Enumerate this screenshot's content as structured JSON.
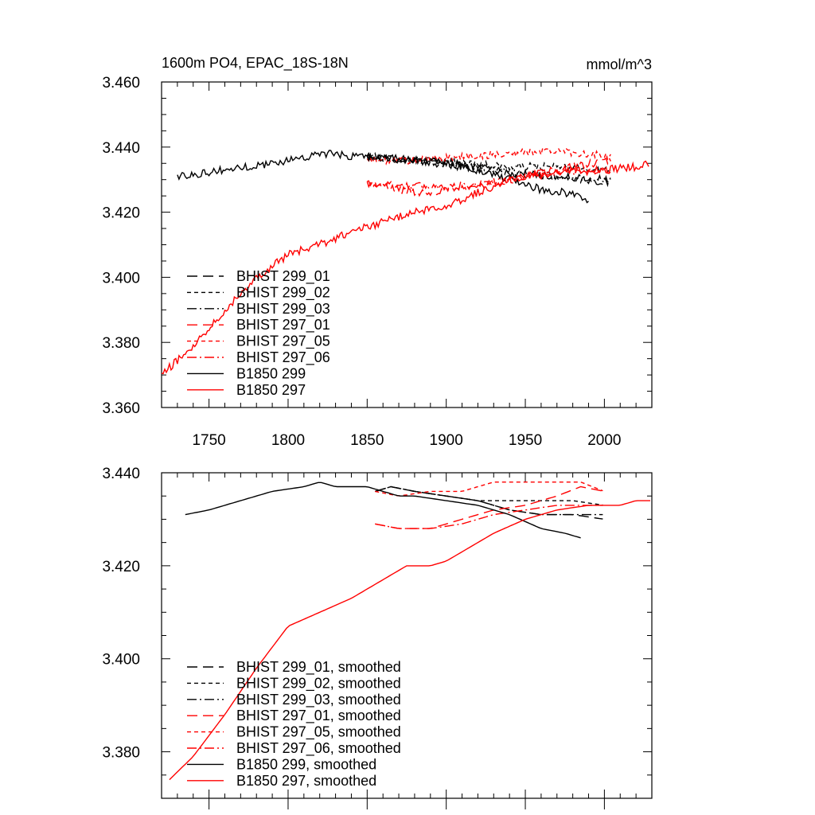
{
  "title_left": "1600m PO4, EPAC_18S-18N",
  "title_right": "mmol/m^3",
  "colors": {
    "black": "#000000",
    "red": "#ff0000"
  },
  "chart_data": [
    {
      "type": "line",
      "panel": "top",
      "title": "1600m PO4, EPAC_18S-18N",
      "units": "mmol/m^3",
      "xlim": [
        1720,
        2030
      ],
      "ylim": [
        3.36,
        3.46
      ],
      "xticks": [
        1750,
        1800,
        1850,
        1900,
        1950,
        2000
      ],
      "xtick_labels": [
        "1750",
        "1800",
        "1850",
        "1900",
        "1950",
        "2000"
      ],
      "yticks": [
        3.36,
        3.38,
        3.4,
        3.42,
        3.44,
        3.46
      ],
      "ytick_labels": [
        "3.360",
        "3.380",
        "3.400",
        "3.420",
        "3.440",
        "3.460"
      ],
      "noise": 0.0012,
      "legend_position": "lower-left",
      "series": [
        {
          "name": "BHIST 299_01",
          "color": "#000000",
          "dash": "long-dash",
          "x": [
            1850,
            1880,
            1910,
            1940,
            1970,
            2004
          ],
          "y": [
            3.437,
            3.436,
            3.434,
            3.432,
            3.431,
            3.429
          ]
        },
        {
          "name": "BHIST 299_02",
          "color": "#000000",
          "dash": "short-dash",
          "x": [
            1850,
            1880,
            1910,
            1940,
            1970,
            2004
          ],
          "y": [
            3.437,
            3.436,
            3.435,
            3.434,
            3.434,
            3.433
          ]
        },
        {
          "name": "BHIST 299_03",
          "color": "#000000",
          "dash": "dash-dot",
          "x": [
            1850,
            1880,
            1910,
            1940,
            1970,
            2004
          ],
          "y": [
            3.437,
            3.436,
            3.435,
            3.432,
            3.431,
            3.43
          ]
        },
        {
          "name": "BHIST 297_01",
          "color": "#ff0000",
          "dash": "long-dash",
          "x": [
            1850,
            1880,
            1910,
            1940,
            1970,
            2004
          ],
          "y": [
            3.429,
            3.426,
            3.427,
            3.43,
            3.433,
            3.436
          ]
        },
        {
          "name": "BHIST 297_05",
          "color": "#ff0000",
          "dash": "short-dash",
          "x": [
            1850,
            1880,
            1910,
            1940,
            1970,
            2004
          ],
          "y": [
            3.436,
            3.436,
            3.437,
            3.438,
            3.439,
            3.437
          ]
        },
        {
          "name": "BHIST 297_06",
          "color": "#ff0000",
          "dash": "dash-dot",
          "x": [
            1850,
            1880,
            1910,
            1940,
            1970,
            2004
          ],
          "y": [
            3.429,
            3.428,
            3.428,
            3.43,
            3.432,
            3.433
          ]
        },
        {
          "name": "B1850 299",
          "color": "#000000",
          "dash": "solid",
          "x": [
            1730,
            1760,
            1790,
            1820,
            1850,
            1880,
            1900,
            1920,
            1940,
            1960,
            1975,
            1990
          ],
          "y": [
            3.431,
            3.433,
            3.435,
            3.438,
            3.437,
            3.436,
            3.435,
            3.433,
            3.43,
            3.427,
            3.426,
            3.424
          ]
        },
        {
          "name": "B1850 297",
          "color": "#ff0000",
          "dash": "solid",
          "x": [
            1720,
            1740,
            1760,
            1780,
            1800,
            1820,
            1840,
            1860,
            1880,
            1900,
            1920,
            1940,
            1960,
            1980,
            2000,
            2020,
            2028
          ],
          "y": [
            3.37,
            3.379,
            3.39,
            3.4,
            3.407,
            3.41,
            3.414,
            3.417,
            3.42,
            3.422,
            3.426,
            3.43,
            3.432,
            3.433,
            3.433,
            3.434,
            3.435
          ]
        }
      ]
    },
    {
      "type": "line",
      "panel": "bottom",
      "xlim": [
        1720,
        2030
      ],
      "ylim": [
        3.37,
        3.44
      ],
      "xticks": [
        1750,
        1800,
        1850,
        1900,
        1950,
        2000
      ],
      "yticks": [
        3.38,
        3.4,
        3.42,
        3.44
      ],
      "ytick_labels": [
        "3.380",
        "3.400",
        "3.420",
        "3.440"
      ],
      "noise": 0,
      "legend_position": "lower-left",
      "series": [
        {
          "name": "BHIST 299_01, smoothed",
          "color": "#000000",
          "dash": "long-dash",
          "x": [
            1855,
            1865,
            1880,
            1900,
            1920,
            1940,
            1960,
            1980,
            2000
          ],
          "y": [
            3.436,
            3.437,
            3.436,
            3.435,
            3.434,
            3.432,
            3.431,
            3.431,
            3.43
          ]
        },
        {
          "name": "BHIST 299_02, smoothed",
          "color": "#000000",
          "dash": "short-dash",
          "x": [
            1855,
            1865,
            1880,
            1900,
            1920,
            1940,
            1960,
            1980,
            2000
          ],
          "y": [
            3.436,
            3.437,
            3.436,
            3.435,
            3.434,
            3.434,
            3.434,
            3.434,
            3.433
          ]
        },
        {
          "name": "BHIST 299_03, smoothed",
          "color": "#000000",
          "dash": "dash-dot",
          "x": [
            1855,
            1865,
            1880,
            1900,
            1920,
            1940,
            1960,
            1980,
            2000
          ],
          "y": [
            3.436,
            3.437,
            3.436,
            3.435,
            3.434,
            3.432,
            3.431,
            3.431,
            3.431
          ]
        },
        {
          "name": "BHIST 297_01, smoothed",
          "color": "#ff0000",
          "dash": "long-dash",
          "x": [
            1855,
            1870,
            1890,
            1910,
            1930,
            1950,
            1970,
            1985,
            2000
          ],
          "y": [
            3.429,
            3.428,
            3.428,
            3.43,
            3.432,
            3.433,
            3.435,
            3.437,
            3.436
          ]
        },
        {
          "name": "BHIST 297_05, smoothed",
          "color": "#ff0000",
          "dash": "short-dash",
          "x": [
            1855,
            1870,
            1890,
            1910,
            1930,
            1950,
            1970,
            1985,
            2000
          ],
          "y": [
            3.436,
            3.435,
            3.436,
            3.436,
            3.438,
            3.438,
            3.438,
            3.438,
            3.436
          ]
        },
        {
          "name": "BHIST 297_06, smoothed",
          "color": "#ff0000",
          "dash": "dash-dot",
          "x": [
            1855,
            1870,
            1890,
            1910,
            1930,
            1950,
            1970,
            1985,
            2000
          ],
          "y": [
            3.429,
            3.428,
            3.428,
            3.429,
            3.431,
            3.432,
            3.433,
            3.433,
            3.433
          ]
        },
        {
          "name": "B1850 299, smoothed",
          "color": "#000000",
          "dash": "solid",
          "x": [
            1735,
            1750,
            1770,
            1790,
            1810,
            1820,
            1830,
            1850,
            1860,
            1870,
            1880,
            1900,
            1920,
            1940,
            1960,
            1975,
            1985
          ],
          "y": [
            3.431,
            3.432,
            3.434,
            3.436,
            3.437,
            3.438,
            3.437,
            3.437,
            3.436,
            3.435,
            3.435,
            3.434,
            3.433,
            3.431,
            3.428,
            3.427,
            3.426
          ]
        },
        {
          "name": "B1850 297, smoothed",
          "color": "#ff0000",
          "dash": "solid",
          "x": [
            1725,
            1740,
            1760,
            1780,
            1800,
            1820,
            1840,
            1860,
            1875,
            1890,
            1900,
            1915,
            1930,
            1950,
            1970,
            1990,
            2010,
            2020,
            2030
          ],
          "y": [
            3.374,
            3.379,
            3.388,
            3.398,
            3.407,
            3.41,
            3.413,
            3.417,
            3.42,
            3.42,
            3.421,
            3.424,
            3.427,
            3.43,
            3.432,
            3.433,
            3.433,
            3.434,
            3.434
          ]
        }
      ]
    }
  ]
}
